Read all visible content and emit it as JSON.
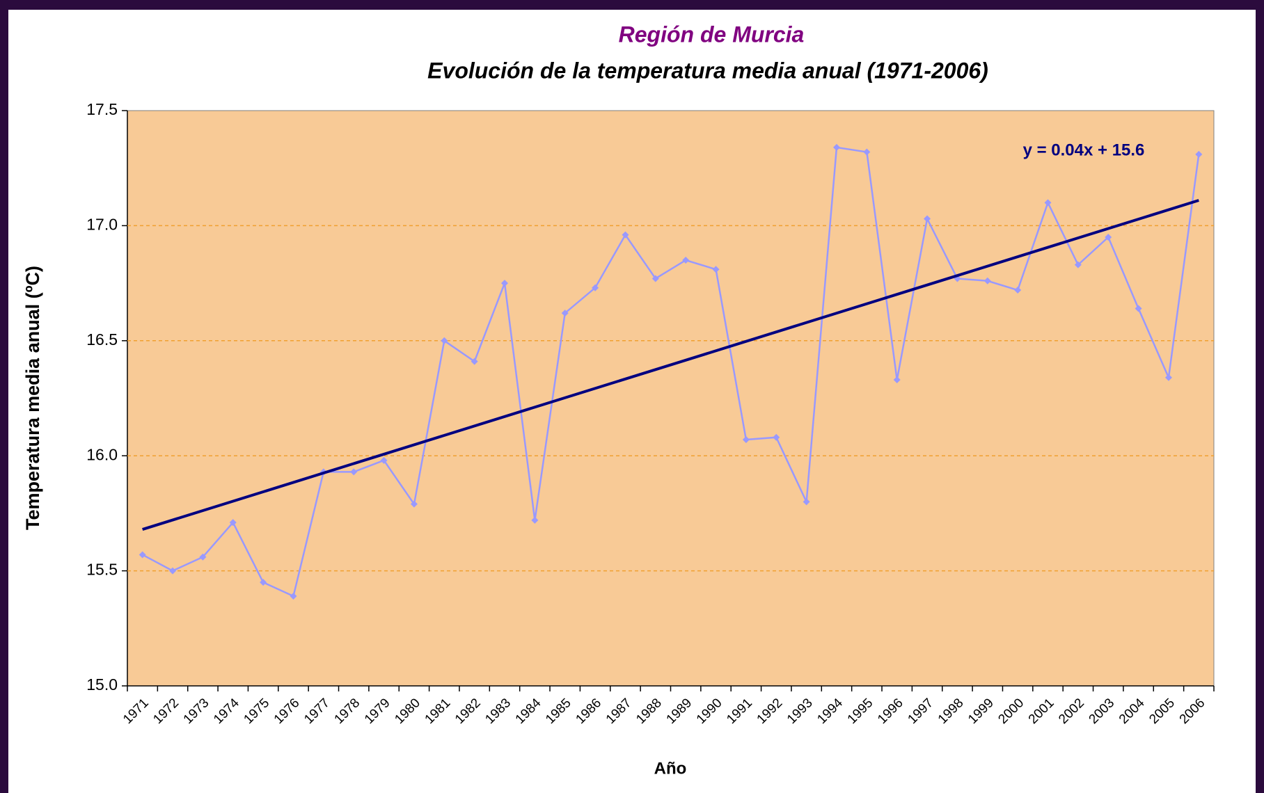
{
  "chart_data": {
    "type": "line",
    "title": "Región de Murcia",
    "subtitle": "Evolución de la temperatura media anual (1971-2006)",
    "x_label": "Año",
    "y_label": "Temperatura media anual (ºC)",
    "categories": [
      "1971",
      "1972",
      "1973",
      "1974",
      "1975",
      "1976",
      "1977",
      "1978",
      "1979",
      "1980",
      "1981",
      "1982",
      "1983",
      "1984",
      "1985",
      "1986",
      "1987",
      "1988",
      "1989",
      "1990",
      "1991",
      "1992",
      "1993",
      "1994",
      "1995",
      "1996",
      "1997",
      "1998",
      "1999",
      "2000",
      "2001",
      "2002",
      "2003",
      "2004",
      "2005",
      "2006"
    ],
    "values": [
      15.57,
      15.5,
      15.56,
      15.71,
      15.45,
      15.39,
      15.93,
      15.93,
      15.98,
      15.79,
      16.5,
      16.41,
      16.75,
      15.72,
      16.62,
      16.73,
      16.96,
      16.77,
      16.85,
      16.81,
      16.07,
      16.08,
      15.8,
      17.34,
      17.32,
      16.33,
      17.03,
      16.77,
      16.76,
      16.72,
      17.1,
      16.83,
      16.95,
      16.64,
      16.34,
      17.31
    ],
    "color": "#9999ff",
    "trendline": {
      "label": "y = 0.04x + 15.6",
      "start": 15.68,
      "end": 17.11,
      "color": "#000080"
    },
    "ylim": [
      15.0,
      17.5
    ],
    "yticks": [
      {
        "value": 15,
        "label": "15.0"
      },
      {
        "value": 15.5,
        "label": "15.5"
      },
      {
        "value": 16,
        "label": "16.0"
      },
      {
        "value": 16.5,
        "label": "16.5"
      },
      {
        "value": 17,
        "label": "17.0"
      },
      {
        "value": 17.5,
        "label": "17.5"
      }
    ],
    "grid": true
  }
}
